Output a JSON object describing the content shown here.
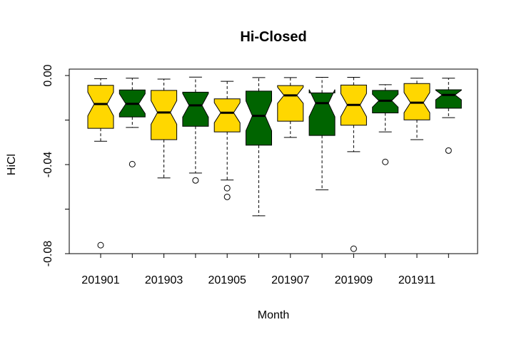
{
  "chart_data": {
    "type": "boxplot",
    "title": "Hi-Closed",
    "xlabel": "Month",
    "ylabel": "HiCl",
    "ylim": [
      -0.08,
      0.0
    ],
    "yticks": [
      0.0,
      -0.04,
      -0.08
    ],
    "yticks_unlabeled": [
      -0.02,
      -0.06
    ],
    "ytick_labels": [
      "0.00",
      "-0.04",
      "-0.08"
    ],
    "xtick_labels": [
      "201901",
      "201903",
      "201905",
      "201907",
      "201909",
      "201911"
    ],
    "notched": true,
    "grid": false,
    "colors": {
      "odd": "#FFD700",
      "even": "#006400"
    },
    "categories": [
      "201901",
      "201902",
      "201903",
      "201904",
      "201905",
      "201906",
      "201907",
      "201908",
      "201909",
      "201910",
      "201911",
      "201912"
    ],
    "boxes": [
      {
        "category": "201901",
        "color": "#FFD700",
        "whisker_low": -0.0295,
        "q1": -0.0237,
        "median": -0.0128,
        "q3": -0.0044,
        "whisker_high": -0.0014,
        "notch_low": -0.0181,
        "notch_high": -0.0075,
        "outliers": [
          -0.0762
        ]
      },
      {
        "category": "201902",
        "color": "#006400",
        "whisker_low": -0.0233,
        "q1": -0.0186,
        "median": -0.0127,
        "q3": -0.0065,
        "whisker_high": -0.0012,
        "notch_low": -0.0171,
        "notch_high": -0.0082,
        "outliers": [
          -0.0398
        ]
      },
      {
        "category": "201903",
        "color": "#FFD700",
        "whisker_low": -0.046,
        "q1": -0.0288,
        "median": -0.0166,
        "q3": -0.0067,
        "whisker_high": -0.0016,
        "notch_low": -0.0219,
        "notch_high": -0.0113,
        "outliers": []
      },
      {
        "category": "201904",
        "color": "#006400",
        "whisker_low": -0.0438,
        "q1": -0.0228,
        "median": -0.0134,
        "q3": -0.0075,
        "whisker_high": -0.0007,
        "notch_low": -0.0187,
        "notch_high": -0.0081,
        "outliers": [
          -0.0471
        ]
      },
      {
        "category": "201905",
        "color": "#FFD700",
        "whisker_low": -0.0469,
        "q1": -0.0253,
        "median": -0.0167,
        "q3": -0.0105,
        "whisker_high": -0.0026,
        "notch_low": -0.0212,
        "notch_high": -0.0122,
        "outliers": [
          -0.0506,
          -0.0545
        ]
      },
      {
        "category": "201906",
        "color": "#006400",
        "whisker_low": -0.063,
        "q1": -0.0313,
        "median": -0.0181,
        "q3": -0.007,
        "whisker_high": -0.0009,
        "notch_low": -0.0248,
        "notch_high": -0.0114,
        "outliers": []
      },
      {
        "category": "201907",
        "color": "#FFD700",
        "whisker_low": -0.0278,
        "q1": -0.0205,
        "median": -0.0089,
        "q3": -0.0045,
        "whisker_high": -0.0009,
        "notch_low": -0.0125,
        "notch_high": -0.0052,
        "outliers": []
      },
      {
        "category": "201908",
        "color": "#006400",
        "whisker_low": -0.0513,
        "q1": -0.0269,
        "median": -0.0124,
        "q3": -0.0078,
        "whisker_high": -0.0008,
        "notch_low": -0.0185,
        "notch_high": -0.0063,
        "outliers": []
      },
      {
        "category": "201909",
        "color": "#FFD700",
        "whisker_low": -0.0342,
        "q1": -0.0223,
        "median": -0.0132,
        "q3": -0.0043,
        "whisker_high": -0.0008,
        "notch_low": -0.0185,
        "notch_high": -0.0081,
        "outliers": [
          -0.0778
        ]
      },
      {
        "category": "201910",
        "color": "#006400",
        "whisker_low": -0.0253,
        "q1": -0.0168,
        "median": -0.0113,
        "q3": -0.0067,
        "whisker_high": -0.0041,
        "notch_low": -0.0142,
        "notch_high": -0.0084,
        "outliers": [
          -0.0388
        ]
      },
      {
        "category": "201911",
        "color": "#FFD700",
        "whisker_low": -0.0288,
        "q1": -0.0199,
        "median": -0.0122,
        "q3": -0.0036,
        "whisker_high": -0.0012,
        "notch_low": -0.0167,
        "notch_high": -0.0076,
        "outliers": []
      },
      {
        "category": "201912",
        "color": "#006400",
        "whisker_low": -0.0189,
        "q1": -0.0147,
        "median": -0.0087,
        "q3": -0.0064,
        "whisker_high": -0.0012,
        "notch_low": -0.0109,
        "notch_high": -0.0066,
        "outliers": [
          -0.0337
        ]
      }
    ]
  }
}
